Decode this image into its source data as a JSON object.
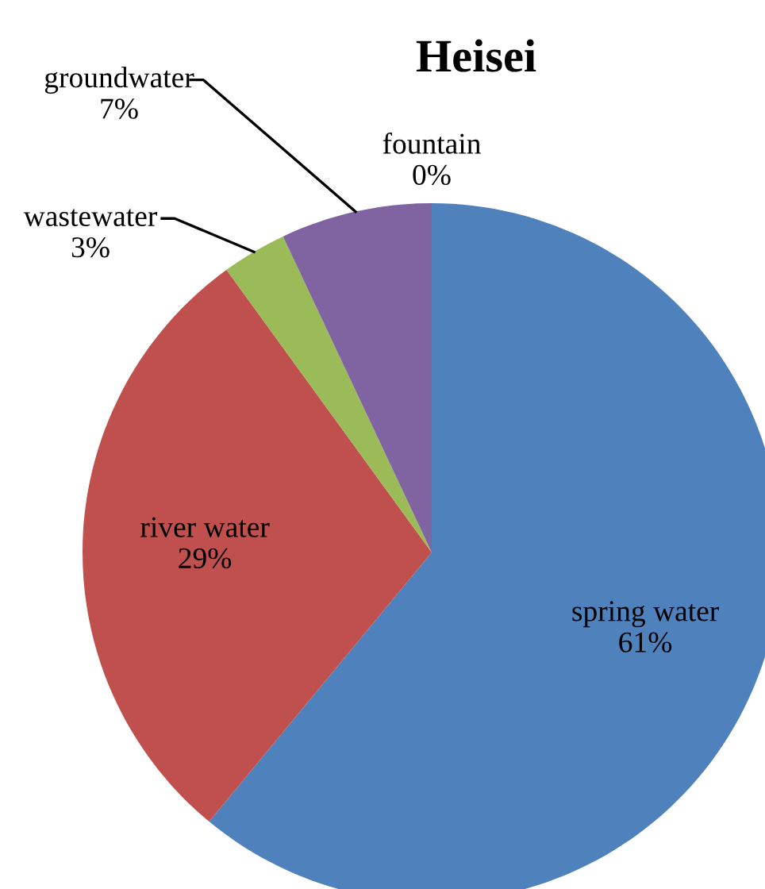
{
  "chart_data": {
    "type": "pie",
    "title": "Heisei",
    "categories": [
      "spring water",
      "river water",
      "wastewater",
      "groundwater",
      "fountain"
    ],
    "values": [
      61,
      29,
      3,
      7,
      0
    ],
    "value_labels": [
      "61%",
      "29%",
      "3%",
      "7%",
      "0%"
    ],
    "colors": [
      "#4f81bd",
      "#c0504d",
      "#9bbb59",
      "#8064a2",
      "#4bacc6"
    ],
    "legend": false
  }
}
